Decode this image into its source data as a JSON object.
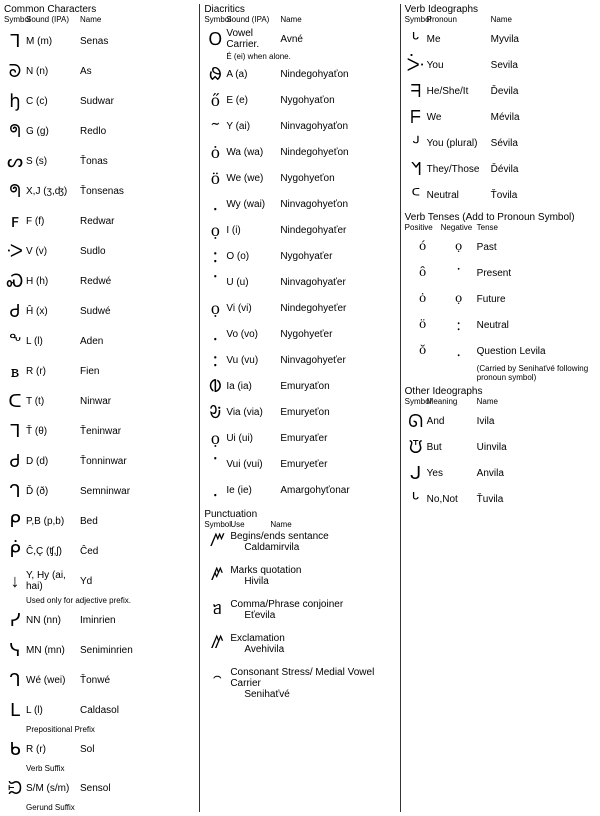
{
  "colors": {
    "text": "#000000",
    "bg": "#ffffff",
    "divider": "#333333"
  },
  "col1": {
    "title": "Common Characters",
    "headers": {
      "symbol": "Symbol",
      "sound": "Sound (IPA)",
      "name": "Name"
    },
    "rows": [
      {
        "glyph": "ᒣ",
        "sound": "M (m)",
        "name": "Senas"
      },
      {
        "glyph": "ᘐ",
        "sound": "N (n)",
        "name": "As"
      },
      {
        "glyph": "ꜧ",
        "sound": "C (c)",
        "name": "Sudwar"
      },
      {
        "glyph": "ᖗ",
        "sound": "G (g)",
        "name": "Redlo"
      },
      {
        "glyph": "ᔕ",
        "sound": "S (s)",
        "name": "Ťonas"
      },
      {
        "glyph": "ᖗ",
        "sound": "X,J (ʒ,ʤ)",
        "name": "Ťonsenas"
      },
      {
        "glyph": "ꜰ",
        "sound": "F (f)",
        "name": "Redwar"
      },
      {
        "glyph": "ᑀ",
        "sound": "V (v)",
        "name": "Sudlo"
      },
      {
        "glyph": "Ꮝ",
        "sound": "H (h)",
        "name": "Redwé"
      },
      {
        "glyph": "Ꮷ",
        "sound": "Ĥ (x)",
        "name": "Sudwé"
      },
      {
        "glyph": "ᖕ",
        "sound": "L (l)",
        "name": "Aden"
      },
      {
        "glyph": "ᏼ",
        "sound": "R (r)",
        "name": "Fien"
      },
      {
        "glyph": "ᑕ",
        "sound": "T (t)",
        "name": "Ninwar"
      },
      {
        "glyph": "ᒣ",
        "sound": "Ť (θ)",
        "name": "Ťeninwar"
      },
      {
        "glyph": "Ꮷ",
        "sound": "D (d)",
        "name": "Ťonninwar"
      },
      {
        "glyph": "ᒉ",
        "sound": "Ď (ð)",
        "name": "Semninwar"
      },
      {
        "glyph": "ᑭ",
        "sound": "P,B (p,b)",
        "name": "Bed"
      },
      {
        "glyph": "ᑮ",
        "sound": "Ĉ,Ç (ʧ,ʃ)",
        "name": "Ĉed"
      },
      {
        "glyph": "↓",
        "sound": "Y, Hy (ai, hai)",
        "name": "Yd",
        "note": "Used only for adjective prefix."
      },
      {
        "glyph": "ᓯ",
        "sound": "NN (nn)",
        "name": "Iminrien"
      },
      {
        "glyph": "ᓭ",
        "sound": "MN (mn)",
        "name": "Seniminrien"
      },
      {
        "glyph": "ᒉ",
        "sound": "Wé (wei)",
        "name": "Ťonwé"
      },
      {
        "glyph": "ᒪ",
        "sound": "L (l)",
        "name": "Caldasol",
        "sub": "Prepositional Prefix"
      },
      {
        "glyph": "ᑲ",
        "sound": "R (r)",
        "name": "Sol",
        "sub": "Verb Suffix"
      },
      {
        "glyph": "ᙊ",
        "sound": "S/M (s/m)",
        "name": "Sensol",
        "sub": "Gerund Suffix"
      }
    ]
  },
  "col2": {
    "diacritics": {
      "title": "Diacritics",
      "headers": {
        "symbol": "Symbol",
        "sound": "Sound (IPA)",
        "name": "Name"
      },
      "rows": [
        {
          "glyph": "ᱛ",
          "sound": "Vowel Carrier.",
          "name": "Avné",
          "note": "É (ei) when alone."
        },
        {
          "glyph": "ᱷ",
          "sound": "A (a)",
          "name": "Nindegohyaťon"
        },
        {
          "glyph": "ő",
          "sound": "E (e)",
          "name": "Nygohyaťon"
        },
        {
          "glyph": "ᱻ",
          "sound": "Y (ai)",
          "name": "Ninvagohyaťon"
        },
        {
          "glyph": "ȯ",
          "sound": "Wa (wa)",
          "name": "Nindegohyeťon"
        },
        {
          "glyph": "ö",
          "sound": "We (we)",
          "name": "Nygohyeťon"
        },
        {
          "glyph": "ᱹ",
          "sound": "Wy (wai)",
          "name": "Ninvagohyeťon"
        },
        {
          "glyph": "ọ",
          "sound": "I (i)",
          "name": "Nindegohyaťer"
        },
        {
          "glyph": "ᱺ",
          "sound": "O (o)",
          "name": "Nygohyaťer"
        },
        {
          "glyph": "ᱸ",
          "sound": "U (u)",
          "name": "Ninvagohyaťer"
        },
        {
          "glyph": "ọ",
          "sound": "Vi (vi)",
          "name": "Nindegohyeťer"
        },
        {
          "glyph": "ᱹ",
          "sound": "Vo (vo)",
          "name": "Nygohyeťer"
        },
        {
          "glyph": "ᱺ",
          "sound": "Vu (vu)",
          "name": "Ninvagohyeťer"
        },
        {
          "glyph": "ᱵ",
          "sound": "Ia (ia)",
          "name": "Emuryaťon"
        },
        {
          "glyph": "ᱶ",
          "sound": "Via (via)",
          "name": "Emuryeťon"
        },
        {
          "glyph": "ọ",
          "sound": "Ui (ui)",
          "name": "Emuryaťer"
        },
        {
          "glyph": "ᱸ",
          "sound": "Vui (vui)",
          "name": "Emuryeťer"
        },
        {
          "glyph": "ᱹ",
          "sound": "Ie (ie)",
          "name": "Amargohyťonar"
        }
      ]
    },
    "punct": {
      "title": "Punctuation",
      "headers": {
        "symbol": "Symbol",
        "use": "Use",
        "name": "Name"
      },
      "rows": [
        {
          "glyph": "ꤻ",
          "use": "Begins/ends sentance",
          "name": "Caldamirvila"
        },
        {
          "glyph": "ꤺ",
          "use": "Marks quotation",
          "name": "Hivila"
        },
        {
          "glyph": "ᥑ",
          "use": "Comma/Phrase conjoiner",
          "name": "Eťevila"
        },
        {
          "glyph": "ꤼ",
          "use": "Exclamation",
          "name": "Avehivila"
        },
        {
          "glyph": "꤮",
          "use": "Consonant Stress/ Medial Vowel Carrier",
          "name": "Senihaťvé"
        }
      ]
    }
  },
  "col3": {
    "verb": {
      "title": "Verb Ideographs",
      "headers": {
        "symbol": "Symbol",
        "pronoun": "Pronoun",
        "name": "Name"
      },
      "rows": [
        {
          "glyph": "ᒡ",
          "pronoun": "Me",
          "name": "Myvila"
        },
        {
          "glyph": "ᑃ",
          "pronoun": "You",
          "name": "Sevila"
        },
        {
          "glyph": "ᖷ",
          "pronoun": "He/She/It",
          "name": "Ďevila"
        },
        {
          "glyph": "ᖴ",
          "pronoun": "We",
          "name": "Mévila"
        },
        {
          "glyph": "ᒢ",
          "pronoun": "You (plural)",
          "name": "Sévila"
        },
        {
          "glyph": "ᖿ",
          "pronoun": "They/Those",
          "name": "Ďévila"
        },
        {
          "glyph": "ᒼ",
          "pronoun": "Neutral",
          "name": "Ťovila"
        }
      ]
    },
    "tense": {
      "title": "Verb Tenses (Add to Pronoun Symbol)",
      "headers": {
        "pos": "Positive",
        "neg": "Negative",
        "tense": "Tense"
      },
      "rows": [
        {
          "pos": "ó",
          "neg": "ọ",
          "tense": "Past"
        },
        {
          "pos": "ô",
          "neg": "ᱸ",
          "tense": "Present"
        },
        {
          "pos": "ȯ",
          "neg": "ọ",
          "tense": "Future"
        },
        {
          "pos": "ö",
          "neg": "ᱺ",
          "tense": "Neutral"
        },
        {
          "pos": "ŏ",
          "neg": "ᱹ",
          "tense": "Question",
          "name": "Levila",
          "note": "(Carried by Senihaťvé following pronoun symbol)"
        }
      ]
    },
    "other": {
      "title": "Other Ideographs",
      "headers": {
        "symbol": "Symbol",
        "meaning": "Meaning",
        "name": "Name"
      },
      "rows": [
        {
          "glyph": "ᘏ",
          "meaning": "And",
          "name": "Ivila"
        },
        {
          "glyph": "ᙈ",
          "meaning": "But",
          "name": "Uinvila"
        },
        {
          "glyph": "ᒍ",
          "meaning": "Yes",
          "name": "Anvila"
        },
        {
          "glyph": "ᒡ",
          "meaning": "No,Not",
          "name": "Ťuvila"
        }
      ]
    }
  }
}
